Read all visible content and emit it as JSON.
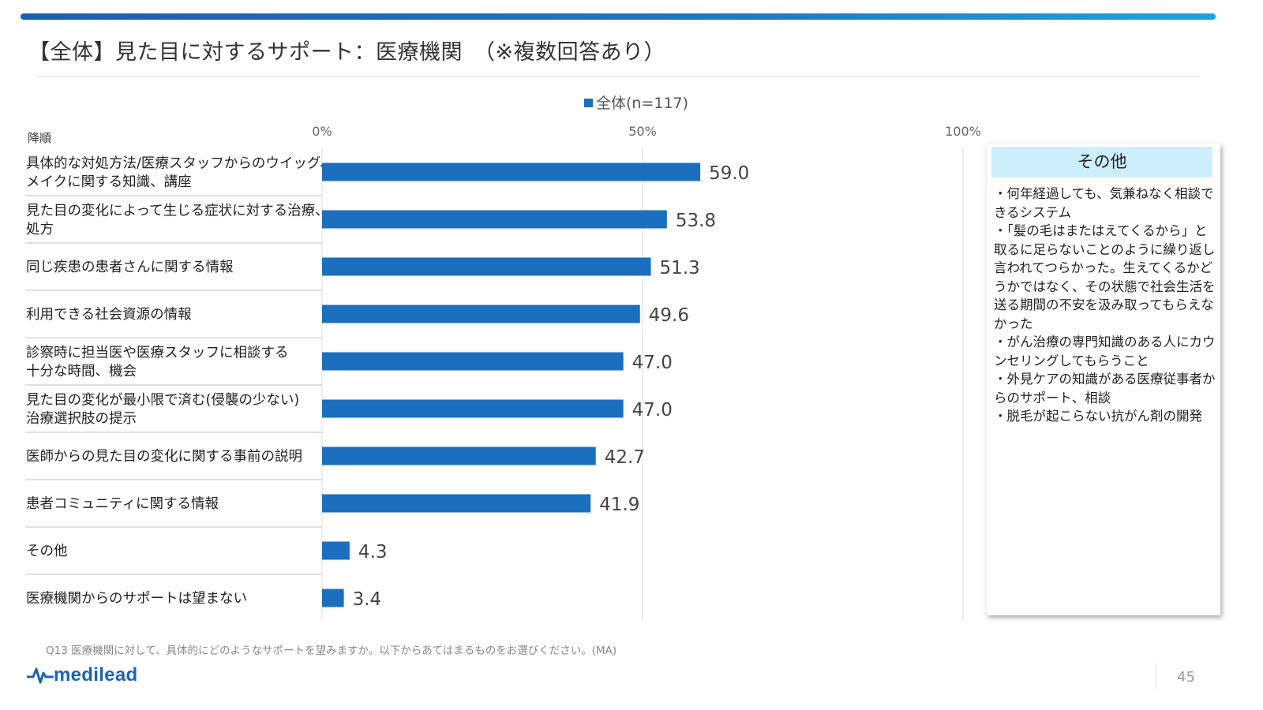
{
  "title": "【全体】見た目に対するサポート：医療機関　（※複数回答あり）",
  "sort_label": "降順",
  "colors": {
    "bar": "#1b6fbe",
    "accent": "#1f78c8",
    "other_header_bg": "#cdeffc",
    "logo": "#1a63b5"
  },
  "chart_data": {
    "type": "bar",
    "orientation": "horizontal",
    "series": [
      {
        "name": "全体(n=117)",
        "values": [
          59.0,
          53.8,
          51.3,
          49.6,
          47.0,
          47.0,
          42.7,
          41.9,
          4.3,
          3.4
        ]
      }
    ],
    "categories": [
      [
        "具体的な対処方法/医療スタッフからのウイッグ、",
        "メイクに関する知識、講座"
      ],
      [
        "見た目の変化によって生じる症状に対する治療、",
        "処方"
      ],
      [
        "同じ疾患の患者さんに関する情報"
      ],
      [
        "利用できる社会資源の情報"
      ],
      [
        "診察時に担当医や医療スタッフに相談する",
        "十分な時間、機会"
      ],
      [
        "見た目の変化が最小限で済む(侵襲の少ない)",
        "治療選択肢の提示"
      ],
      [
        "医師からの見た目の変化に関する事前の説明"
      ],
      [
        "患者コミュニティに関する情報"
      ],
      [
        "その他"
      ],
      [
        "医療機関からのサポートは望まない"
      ]
    ],
    "value_labels": [
      "59.0",
      "53.8",
      "51.3",
      "49.6",
      "47.0",
      "47.0",
      "42.7",
      "41.9",
      "4.3",
      "3.4"
    ],
    "xlim": [
      0,
      100
    ],
    "xticks": [
      0,
      50,
      100
    ],
    "xtick_labels": [
      "0%",
      "50%",
      "100%"
    ],
    "grid": true,
    "legend": "top"
  },
  "other_box": {
    "title": "その他",
    "items": [
      "・何年経過しても、気兼ねなく相談できるシステム",
      "・「髪の毛はまたはえてくるから」と取るに足らないことのように繰り返し言われてつらかった。生えてくるかどうかではなく、その状態で社会生活を送る期間の不安を汲み取ってもらえなかった",
      "・がん治療の専門知識のある人にカウンセリングしてもらうこと",
      "・外見ケアの知識がある医療従事者からのサポート、相談",
      "・脱毛が起こらない抗がん剤の開発"
    ]
  },
  "footnote": "Q13 医療機関に対して、具体的にどのようなサポートを望みますか。以下からあてはまるものをお選びください。(MA)",
  "logo_text": "medilead",
  "page_number": "45"
}
